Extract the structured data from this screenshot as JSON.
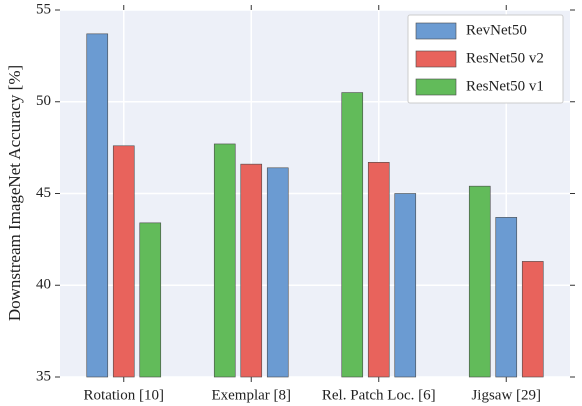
{
  "chart_data": {
    "type": "bar",
    "y_label": "Downstream ImageNet Accuracy [%]",
    "categories": [
      "Rotation [10]",
      "Exemplar [8]",
      "Rel. Patch Loc. [6]",
      "Jigsaw [29]"
    ],
    "series": [
      {
        "name": "RevNet50",
        "color": "#6b9bd2",
        "values": [
          53.7,
          46.4,
          45.0,
          43.7
        ]
      },
      {
        "name": "ResNet50 v2",
        "color": "#e8635c",
        "values": [
          47.6,
          46.6,
          46.7,
          41.3
        ]
      },
      {
        "name": "ResNet50 v1",
        "color": "#62bb5a",
        "values": [
          43.4,
          47.7,
          50.5,
          45.4
        ]
      }
    ],
    "ylim": [
      35,
      55
    ],
    "yticks": [
      35,
      40,
      45,
      50,
      55
    ],
    "grid": true,
    "legend": "upper right"
  }
}
